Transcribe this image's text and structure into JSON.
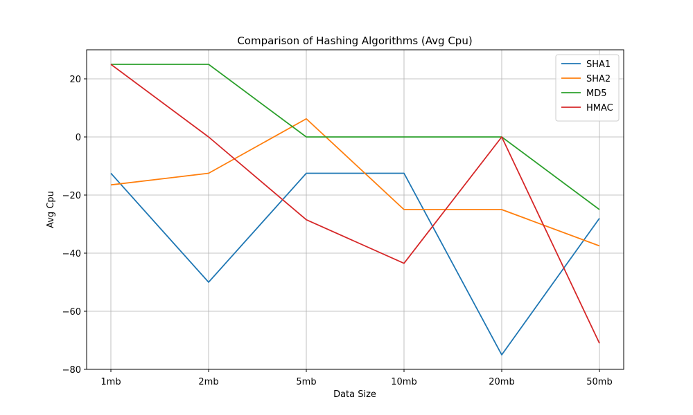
{
  "chart_data": {
    "type": "line",
    "title": "Comparison of Hashing Algorithms (Avg Cpu)",
    "xlabel": "Data Size",
    "ylabel": "Avg Cpu",
    "categories": [
      "1mb",
      "2mb",
      "5mb",
      "10mb",
      "20mb",
      "50mb"
    ],
    "ylim": [
      -80,
      30
    ],
    "yticks": [
      -80,
      -60,
      -40,
      -20,
      0,
      20
    ],
    "grid": true,
    "legend_position": "top-right",
    "series": [
      {
        "name": "SHA1",
        "color": "#1f77b4",
        "values": [
          -12.5,
          -50,
          -12.5,
          -12.5,
          -75,
          -28
        ]
      },
      {
        "name": "SHA2",
        "color": "#ff7f0e",
        "values": [
          -16.5,
          -12.5,
          6.25,
          -25,
          -25,
          -37.5
        ]
      },
      {
        "name": "MD5",
        "color": "#2ca02c",
        "values": [
          25,
          25,
          0,
          0,
          0,
          -25
        ]
      },
      {
        "name": "HMAC",
        "color": "#d62728",
        "values": [
          25,
          0,
          -28.5,
          -43.5,
          0,
          -71
        ]
      }
    ]
  }
}
